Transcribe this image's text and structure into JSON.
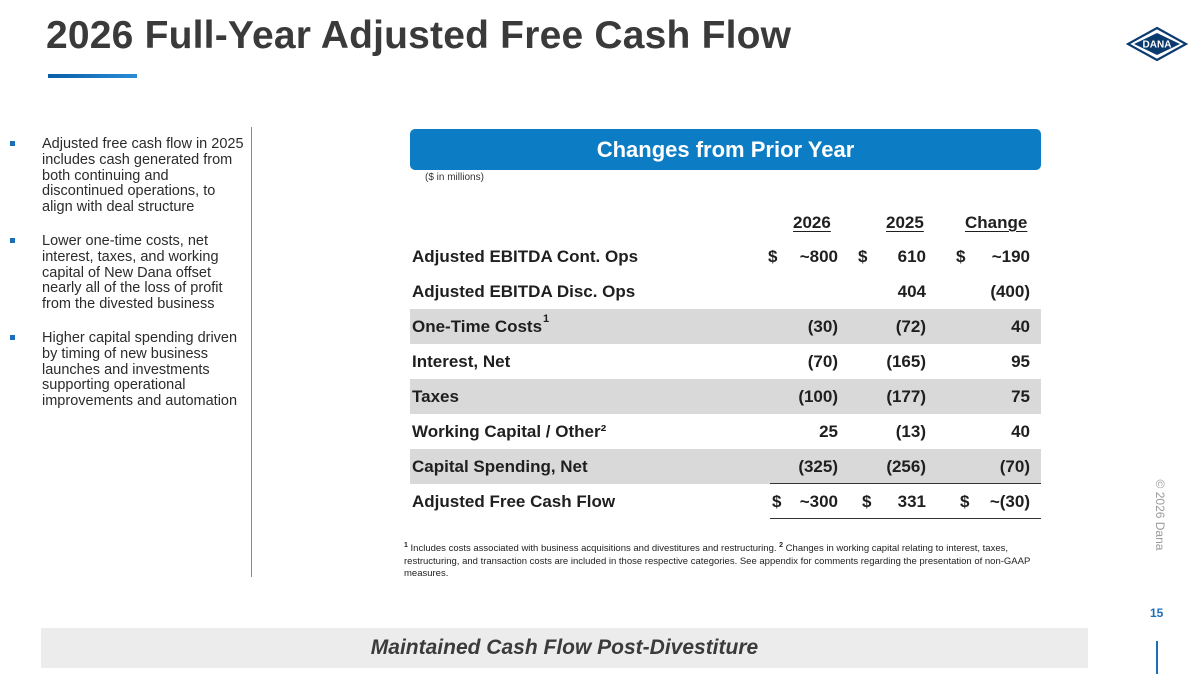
{
  "title": "2026 Full-Year Adjusted Free Cash Flow",
  "logo_text": "DANA",
  "colors": {
    "accent": "#0c7cc4",
    "shaded_row": "#d9d9d9",
    "bottom_banner": "#ececec"
  },
  "bullets": [
    "Adjusted free cash flow in 2025 includes cash generated from both continuing and discontinued operations, to align with deal structure",
    "Lower one-time costs, net interest, taxes, and working capital of New Dana offset nearly all of the loss of profit from the divested business",
    "Higher capital spending driven by timing of new business launches and investments supporting operational improvements and automation"
  ],
  "table": {
    "banner": "Changes from Prior Year",
    "units": "($ in millions)",
    "headers": [
      "2026",
      "2025",
      "Change"
    ],
    "rows": [
      {
        "label": "Adjusted EBITDA Cont. Ops",
        "sup": "",
        "c2026": "~800",
        "c2025": "610",
        "change": "~190",
        "dollar": true
      },
      {
        "label": "Adjusted EBITDA Disc. Ops",
        "sup": "",
        "c2026": "",
        "c2025": "404",
        "change": "(400)",
        "dollar": false
      },
      {
        "label": "One-Time Costs",
        "sup": "1",
        "c2026": "(30)",
        "c2025": "(72)",
        "change": "40",
        "dollar": false
      },
      {
        "label": "Interest, Net",
        "sup": "",
        "c2026": "(70)",
        "c2025": "(165)",
        "change": "95",
        "dollar": false
      },
      {
        "label": "Taxes",
        "sup": "",
        "c2026": "(100)",
        "c2025": "(177)",
        "change": "75",
        "dollar": false
      },
      {
        "label": "Working Capital / Other²",
        "sup": "",
        "c2026": "25",
        "c2025": "(13)",
        "change": "40",
        "dollar": false
      },
      {
        "label": "Capital Spending, Net",
        "sup": "",
        "c2026": "(325)",
        "c2025": "(256)",
        "change": "(70)",
        "dollar": false
      },
      {
        "label": "Adjusted Free Cash Flow",
        "sup": "",
        "c2026": "~300",
        "c2025": "331",
        "change": "~(30)",
        "dollar": true
      }
    ],
    "currency_symbol": "$"
  },
  "footnote": {
    "n1": "1",
    "text1": " Includes costs associated with business acquisitions and divestitures and restructuring. ",
    "n2": "2",
    "text2": " Changes in working capital relating to interest, taxes, restructuring, and transaction costs are included in those respective categories.  See appendix for comments regarding the presentation of non-GAAP measures."
  },
  "copyright": "© 2026 Dana",
  "page_number": "15",
  "bottom_banner": "Maintained Cash Flow Post-Divestiture"
}
